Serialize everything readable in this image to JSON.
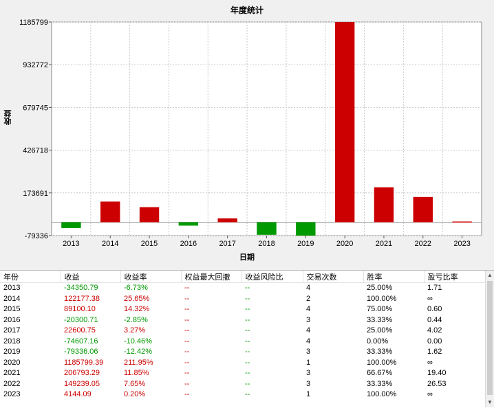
{
  "chart": {
    "title": "年度统计",
    "ylabel": "收益",
    "xlabel": "日期"
  },
  "chart_data": {
    "type": "bar",
    "title": "年度统计",
    "xlabel": "日期",
    "ylabel": "收益",
    "categories": [
      "2013",
      "2014",
      "2015",
      "2016",
      "2017",
      "2018",
      "2019",
      "2020",
      "2021",
      "2022",
      "2023"
    ],
    "values": [
      -34350.79,
      122177.38,
      89100.1,
      -20300.71,
      22600.75,
      -74607.16,
      -79336.06,
      1185799.39,
      206793.29,
      149239.05,
      4144.09
    ],
    "ylim": [
      -79336,
      1185799
    ],
    "yticks": [
      "1185799",
      "932772",
      "679745",
      "426718",
      "173691",
      "-79336"
    ],
    "ytick_values": [
      1185799,
      932772,
      679745,
      426718,
      173691,
      -79336
    ],
    "grid": true,
    "colors": {
      "positive": "#cc0000",
      "negative": "#009900"
    }
  },
  "table": {
    "headers": [
      "年份",
      "收益",
      "收益率",
      "权益最大回撤",
      "收益风险比",
      "交易次数",
      "胜率",
      "盈亏比率"
    ],
    "rows": [
      {
        "year": "2013",
        "profit": "-34350.79",
        "rate": "-6.73%",
        "dd": "--",
        "risk": "--",
        "trades": "4",
        "win": "25.00%",
        "pl": "1.71",
        "sign": "neg"
      },
      {
        "year": "2014",
        "profit": "122177.38",
        "rate": "25.65%",
        "dd": "--",
        "risk": "--",
        "trades": "2",
        "win": "100.00%",
        "pl": "∞",
        "sign": "pos"
      },
      {
        "year": "2015",
        "profit": "89100.10",
        "rate": "14.32%",
        "dd": "--",
        "risk": "--",
        "trades": "4",
        "win": "75.00%",
        "pl": "0.60",
        "sign": "pos"
      },
      {
        "year": "2016",
        "profit": "-20300.71",
        "rate": "-2.85%",
        "dd": "--",
        "risk": "--",
        "trades": "3",
        "win": "33.33%",
        "pl": "0.44",
        "sign": "neg"
      },
      {
        "year": "2017",
        "profit": "22600.75",
        "rate": "3.27%",
        "dd": "--",
        "risk": "--",
        "trades": "4",
        "win": "25.00%",
        "pl": "4.02",
        "sign": "pos"
      },
      {
        "year": "2018",
        "profit": "-74607.16",
        "rate": "-10.46%",
        "dd": "--",
        "risk": "--",
        "trades": "4",
        "win": "0.00%",
        "pl": "0.00",
        "sign": "neg"
      },
      {
        "year": "2019",
        "profit": "-79336.06",
        "rate": "-12.42%",
        "dd": "--",
        "risk": "--",
        "trades": "3",
        "win": "33.33%",
        "pl": "1.62",
        "sign": "neg"
      },
      {
        "year": "2020",
        "profit": "1185799.39",
        "rate": "211.95%",
        "dd": "--",
        "risk": "--",
        "trades": "1",
        "win": "100.00%",
        "pl": "∞",
        "sign": "pos"
      },
      {
        "year": "2021",
        "profit": "206793.29",
        "rate": "11.85%",
        "dd": "--",
        "risk": "--",
        "trades": "3",
        "win": "66.67%",
        "pl": "19.40",
        "sign": "pos"
      },
      {
        "year": "2022",
        "profit": "149239.05",
        "rate": "7.65%",
        "dd": "--",
        "risk": "--",
        "trades": "3",
        "win": "33.33%",
        "pl": "26.53",
        "sign": "pos"
      },
      {
        "year": "2023",
        "profit": "4144.09",
        "rate": "0.20%",
        "dd": "--",
        "risk": "--",
        "trades": "1",
        "win": "100.00%",
        "pl": "∞",
        "sign": "pos"
      }
    ]
  }
}
